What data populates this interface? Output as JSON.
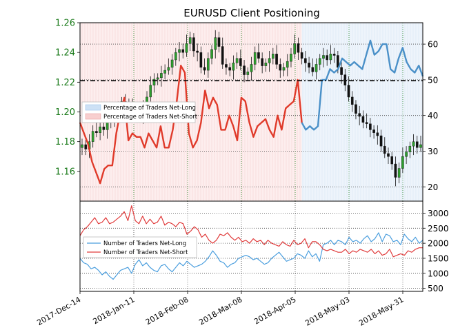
{
  "chart_data": [
    {
      "type": "candlestick+line",
      "title": "EURUSD Client Positioning",
      "left_axis": {
        "ylim": [
          1.14,
          1.26
        ],
        "ticks": [
          "1.16",
          "1.18",
          "1.20",
          "1.22",
          "1.24",
          "1.26"
        ]
      },
      "right_axis": {
        "ylim": [
          16,
          66
        ],
        "ticks": [
          "20",
          "30",
          "40",
          "50",
          "60"
        ]
      },
      "legend": {
        "placement": "left",
        "entries": [
          "Percentage of Traders Net-Long",
          "Percentage of Traders Net-Short"
        ]
      },
      "grid": true,
      "reference_line": 1.221,
      "price_series": {
        "name": "",
        "close": [
          1.178,
          1.175,
          1.18,
          1.187,
          1.186,
          1.19,
          1.188,
          1.195,
          1.193,
          1.2,
          1.203,
          1.207,
          1.205,
          1.203,
          1.2,
          1.202,
          1.198,
          1.203,
          1.21,
          1.218,
          1.222,
          1.223,
          1.226,
          1.228,
          1.23,
          1.235,
          1.24,
          1.242,
          1.24,
          1.246,
          1.25,
          1.241,
          1.24,
          1.23,
          1.228,
          1.236,
          1.242,
          1.25,
          1.244,
          1.232,
          1.23,
          1.228,
          1.233,
          1.236,
          1.231,
          1.225,
          1.227,
          1.232,
          1.24,
          1.236,
          1.231,
          1.233,
          1.236,
          1.239,
          1.232,
          1.228,
          1.23,
          1.234,
          1.239,
          1.246,
          1.24,
          1.236,
          1.233,
          1.23,
          1.227,
          1.232,
          1.236,
          1.238,
          1.235,
          1.239,
          1.238,
          1.23,
          1.225,
          1.218,
          1.21,
          1.205,
          1.199,
          1.197,
          1.193,
          1.192,
          1.188,
          1.186,
          1.184,
          1.177,
          1.172,
          1.17,
          1.165,
          1.156,
          1.162,
          1.17,
          1.173,
          1.177,
          1.18,
          1.176,
          1.178
        ]
      },
      "percent_series": {
        "name": "",
        "values": [
          38,
          35,
          32,
          27,
          24,
          21,
          25,
          26,
          26,
          35,
          41,
          45,
          33,
          35,
          34,
          34,
          31,
          35,
          33,
          31,
          37,
          31,
          31,
          36,
          44,
          54,
          52,
          35,
          31,
          33,
          38,
          47,
          42,
          45,
          43,
          36,
          36,
          40,
          37,
          33,
          45,
          44,
          38,
          34,
          37,
          38,
          39,
          36,
          34,
          40,
          36,
          42,
          43,
          44,
          50,
          38,
          36,
          37,
          36,
          37,
          50,
          50,
          53,
          52,
          53,
          56,
          55,
          54,
          55,
          54,
          53,
          57,
          61,
          57,
          58,
          60,
          60,
          53,
          52,
          56,
          59,
          55,
          53,
          52,
          54,
          51
        ],
        "long_from_index": 55
      }
    },
    {
      "type": "line",
      "right_axis": {
        "ylim": [
          400,
          3400
        ],
        "ticks": [
          "500",
          "1000",
          "1500",
          "2000",
          "2500",
          "3000"
        ]
      },
      "legend": {
        "placement": "left",
        "entries": [
          "Number of Traders Net-Long",
          "Number of Traders Net-Short"
        ]
      },
      "x_tick_labels": [
        "2017-Dec-14",
        "2018-Jan-11",
        "2018-Feb-08",
        "2018-Mar-08",
        "2018-Apr-05",
        "2018-May-03",
        "2018-May-31"
      ],
      "grid": true,
      "series": [
        {
          "name": "Number of Traders Net-Long",
          "color": "#4a9ede",
          "values": [
            1500,
            1350,
            1300,
            1150,
            1200,
            1100,
            950,
            1050,
            900,
            800,
            950,
            1100,
            1150,
            1200,
            1000,
            1300,
            1450,
            1250,
            1350,
            1200,
            1100,
            1050,
            1250,
            1300,
            1150,
            1050,
            1200,
            1350,
            1250,
            1400,
            1300,
            1200,
            1250,
            1300,
            1400,
            1550,
            1750,
            1600,
            1400,
            1350,
            1200,
            1300,
            1350,
            1500,
            1550,
            1600,
            1550,
            1450,
            1500,
            1400,
            1300,
            1350,
            1500,
            1600,
            1700,
            1550,
            1400,
            1450,
            1500,
            1650,
            1600,
            1500,
            1750,
            1550,
            1650,
            1400,
            1950,
            2000,
            2100,
            1950,
            2100,
            2050,
            1950,
            2200,
            2050,
            2100,
            2000,
            2150,
            2250,
            2050,
            2150,
            2350,
            2050,
            2300,
            2250,
            2050,
            2100,
            1950,
            2300,
            2150,
            2050,
            2200,
            2000,
            2100
          ]
        },
        {
          "name": "Number of Traders Net-Short",
          "color": "#e03a3a",
          "values": [
            2250,
            2450,
            2550,
            2700,
            2850,
            2650,
            2700,
            2850,
            2650,
            2700,
            2800,
            2900,
            3050,
            2750,
            3250,
            2750,
            2650,
            2900,
            2650,
            2800,
            2650,
            2700,
            2900,
            2600,
            2700,
            2650,
            2550,
            2700,
            2650,
            2300,
            2400,
            2550,
            2450,
            2200,
            2300,
            2100,
            2000,
            2100,
            2300,
            2250,
            2350,
            2200,
            2100,
            2200,
            2050,
            2100,
            2000,
            2150,
            2050,
            2100,
            1950,
            2100,
            2000,
            1950,
            1900,
            2050,
            1950,
            1900,
            2100,
            1950,
            2000,
            2150,
            1850,
            2050,
            2050,
            1950,
            1800,
            1750,
            1800,
            1750,
            1700,
            1700,
            1800,
            1650,
            1750,
            1700,
            1800,
            1750,
            1700,
            1800,
            1650,
            1750,
            1600,
            1650,
            1800,
            1550,
            1600,
            1650,
            1600,
            1750,
            1700,
            1800,
            1850,
            1850
          ]
        }
      ]
    }
  ]
}
